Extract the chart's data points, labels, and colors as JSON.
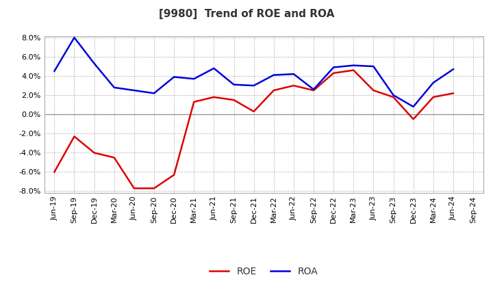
{
  "title": "[9980]  Trend of ROE and ROA",
  "labels": [
    "Jun-19",
    "Sep-19",
    "Dec-19",
    "Mar-20",
    "Jun-20",
    "Sep-20",
    "Dec-20",
    "Mar-21",
    "Jun-21",
    "Sep-21",
    "Dec-21",
    "Mar-22",
    "Jun-22",
    "Sep-22",
    "Dec-22",
    "Mar-23",
    "Jun-23",
    "Sep-23",
    "Dec-23",
    "Mar-24",
    "Jun-24",
    "Sep-24"
  ],
  "ROE": [
    -6.0,
    -2.3,
    -4.0,
    -4.5,
    -7.7,
    -7.7,
    -6.3,
    1.3,
    1.8,
    1.5,
    0.3,
    2.5,
    3.0,
    2.5,
    4.3,
    4.6,
    2.5,
    1.8,
    -0.5,
    1.8,
    2.2,
    null
  ],
  "ROA": [
    4.5,
    8.0,
    5.3,
    2.8,
    2.5,
    2.2,
    3.9,
    3.7,
    4.8,
    3.1,
    3.0,
    4.1,
    4.2,
    2.6,
    4.9,
    5.1,
    5.0,
    2.0,
    0.8,
    3.3,
    4.7,
    null
  ],
  "roe_color": "#dd0000",
  "roa_color": "#0000dd",
  "ylim": [
    -8.0,
    8.0
  ],
  "yticks": [
    -8.0,
    -6.0,
    -4.0,
    -2.0,
    0.0,
    2.0,
    4.0,
    6.0,
    8.0
  ],
  "background_color": "#ffffff",
  "grid_color": "#999999",
  "title_fontsize": 11,
  "legend_fontsize": 10,
  "tick_fontsize": 8,
  "linewidth": 1.8
}
